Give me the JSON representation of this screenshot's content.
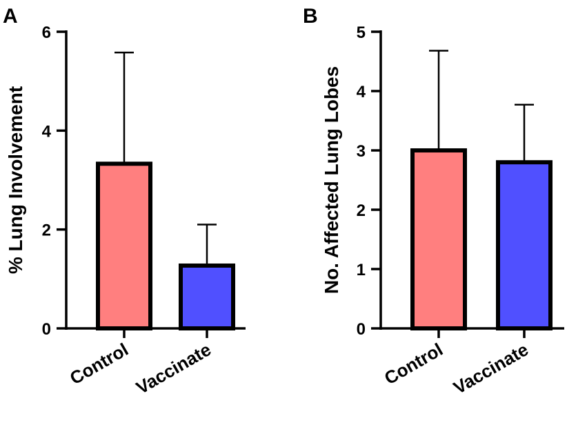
{
  "chart_data": [
    {
      "panel_label": "A",
      "type": "bar",
      "categories": [
        "Control",
        "Vaccinate"
      ],
      "values": [
        3.33,
        1.27
      ],
      "error_upper": [
        5.58,
        2.1
      ],
      "ylabel": "% Lung Involvement",
      "xlabel": "",
      "ylim": [
        0,
        6
      ],
      "yticks": [
        0,
        2,
        4,
        6
      ],
      "ytick_labels": [
        "0",
        "2",
        "4",
        "6"
      ],
      "colors": [
        "#ff7f7f",
        "#5050ff"
      ]
    },
    {
      "panel_label": "B",
      "type": "bar",
      "categories": [
        "Control",
        "Vaccinate"
      ],
      "values": [
        3.0,
        2.8
      ],
      "error_upper": [
        4.68,
        3.77
      ],
      "ylabel": "No. Affected  Lung  Lobes",
      "xlabel": "",
      "ylim": [
        0,
        5
      ],
      "yticks": [
        0,
        1,
        2,
        3,
        4,
        5
      ],
      "ytick_labels": [
        "0",
        "1",
        "2",
        "3",
        "4",
        "5"
      ],
      "colors": [
        "#ff7f7f",
        "#5050ff"
      ]
    }
  ]
}
